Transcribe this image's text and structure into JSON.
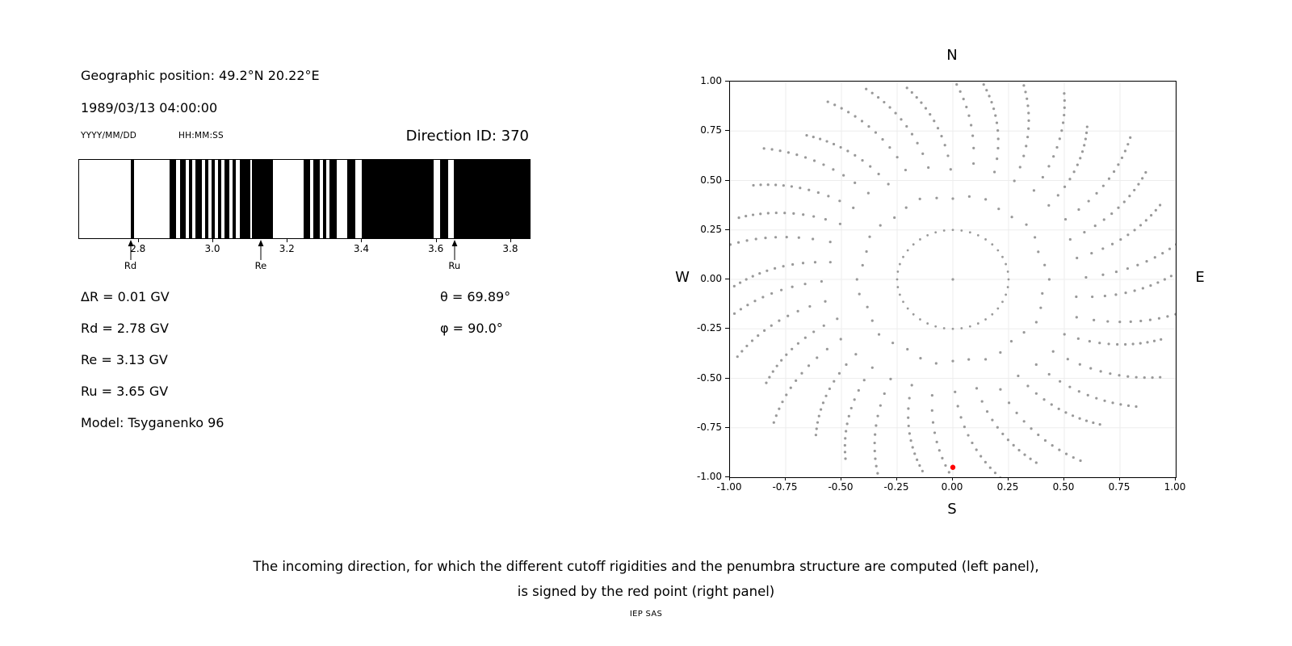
{
  "chart_data": [
    {
      "type": "bar",
      "xlim": [
        2.64,
        3.85
      ],
      "xticks": [
        "2.8",
        "3.0",
        "3.2",
        "3.4",
        "3.6",
        "3.8"
      ],
      "xtick_values": [
        2.8,
        3.0,
        3.2,
        3.4,
        3.6,
        3.8
      ],
      "black_intervals_gv": [
        [
          2.778,
          2.787
        ],
        [
          2.882,
          2.901
        ],
        [
          2.91,
          2.927
        ],
        [
          2.935,
          2.944
        ],
        [
          2.953,
          2.97
        ],
        [
          2.978,
          2.987
        ],
        [
          2.996,
          3.004
        ],
        [
          3.013,
          3.021
        ],
        [
          3.03,
          3.043
        ],
        [
          3.052,
          3.06
        ],
        [
          3.071,
          3.1
        ],
        [
          3.105,
          3.161
        ],
        [
          3.243,
          3.26
        ],
        [
          3.269,
          3.286
        ],
        [
          3.295,
          3.303
        ],
        [
          3.312,
          3.331
        ],
        [
          3.359,
          3.381
        ],
        [
          3.398,
          3.591
        ],
        [
          3.609,
          3.63
        ],
        [
          3.647,
          3.85
        ]
      ],
      "markers": [
        {
          "label": "Rd",
          "value_gv": 2.78
        },
        {
          "label": "Re",
          "value_gv": 3.13
        },
        {
          "label": "Ru",
          "value_gv": 3.65
        }
      ]
    },
    {
      "type": "scatter",
      "xlim": [
        -1.0,
        1.0
      ],
      "ylim": [
        -1.0,
        1.0
      ],
      "xticks": [
        "-1.00",
        "-0.75",
        "-0.50",
        "-0.25",
        "0.00",
        "0.25",
        "0.50",
        "0.75",
        "1.00"
      ],
      "xtick_values": [
        -1.0,
        -0.75,
        -0.5,
        -0.25,
        0.0,
        0.25,
        0.5,
        0.75,
        1.0
      ],
      "yticks": [
        "1.00",
        "0.75",
        "0.50",
        "0.25",
        "0.00",
        "-0.25",
        "-0.50",
        "-0.75",
        "-1.00"
      ],
      "ytick_values": [
        1.0,
        0.75,
        0.5,
        0.25,
        0.0,
        -0.25,
        -0.5,
        -0.75,
        -1.0
      ],
      "grid": true,
      "compass": {
        "top": "N",
        "bottom": "S",
        "left": "W",
        "right": "E"
      },
      "point_color": "#999999",
      "center_point": {
        "x": 0.0,
        "y": 0.0
      },
      "inner_ring": {
        "radius": 0.25,
        "count": 40
      },
      "spokes": {
        "count": 36,
        "r_start": 0.42,
        "r_end": 1.03,
        "points_per_spoke": 13,
        "density_power": 0.55,
        "drift_deg": 12,
        "end_jitter": 0.05
      },
      "red_point": {
        "x": 0.0,
        "y": -0.95,
        "color": "#ff0000"
      }
    }
  ],
  "header": {
    "geo_position": "Geographic position: 49.2°N 20.22°E",
    "datetime": "1989/03/13 04:00:00",
    "date_format": "YYYY/MM/DD",
    "time_format": "HH:MM:SS",
    "direction_id": "Direction ID: 370"
  },
  "params": {
    "lines": [
      "ΔR = 0.01 GV",
      "Rd = 2.78 GV",
      "Re = 3.13 GV",
      "Ru = 3.65 GV",
      "Model: Tsyganenko 96"
    ],
    "angle_lines": [
      "θ = 69.89°",
      "φ = 90.0°"
    ]
  },
  "caption": {
    "line1": "The incoming direction, for which the different cutoff rigidities and the penumbra structure are computed (left panel),",
    "line2": "is signed by the red point (right panel)"
  },
  "credit": "IEP SAS"
}
